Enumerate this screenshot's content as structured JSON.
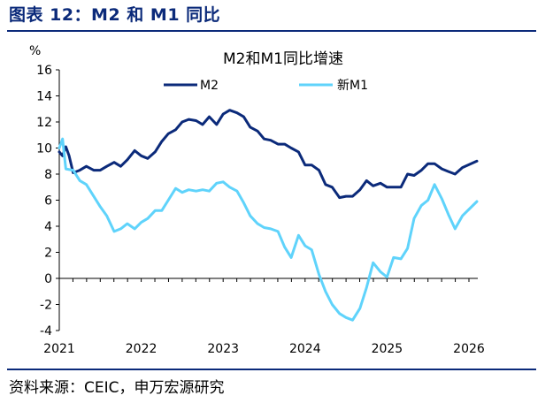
{
  "figure_title": "图表 12：M2 和 M1 同比",
  "source": "资料来源：CEIC，申万宏源研究",
  "colors": {
    "title": "#0b2a7a",
    "m2": "#0b2a7a",
    "m1": "#5fd3fb"
  },
  "chart_data": {
    "type": "line",
    "title": "M2和M1同比增速",
    "ylabel": "%",
    "ylim": [
      -4,
      16
    ],
    "yticks": [
      -4,
      -2,
      0,
      2,
      4,
      6,
      8,
      10,
      12,
      14,
      16
    ],
    "xlim": [
      2021.0,
      2026.0
    ],
    "xticks": [
      {
        "value": 2021,
        "label": "2021"
      },
      {
        "value": 2022,
        "label": "2022"
      },
      {
        "value": 2023,
        "label": "2023"
      },
      {
        "value": 2024,
        "label": "2024"
      },
      {
        "value": 2025,
        "label": "2025"
      },
      {
        "value": 2026,
        "label": "2026"
      }
    ],
    "series": [
      {
        "name": "M2",
        "x": [
          2021.0,
          2021.04,
          2021.08,
          2021.12,
          2021.17,
          2021.25,
          2021.33,
          2021.42,
          2021.5,
          2021.58,
          2021.67,
          2021.75,
          2021.83,
          2021.92,
          2022.0,
          2022.08,
          2022.17,
          2022.25,
          2022.33,
          2022.42,
          2022.5,
          2022.58,
          2022.67,
          2022.75,
          2022.83,
          2022.92,
          2023.0,
          2023.08,
          2023.17,
          2023.25,
          2023.33,
          2023.42,
          2023.5,
          2023.58,
          2023.67,
          2023.75,
          2023.83,
          2023.92,
          2024.0,
          2024.08,
          2024.17,
          2024.25,
          2024.33,
          2024.42,
          2024.5,
          2024.58,
          2024.67,
          2024.75,
          2024.83,
          2024.92,
          2025.0,
          2025.08,
          2025.17,
          2025.25,
          2025.33,
          2025.42,
          2025.5,
          2025.58,
          2025.67,
          2025.75,
          2025.83,
          2025.92,
          2026.0
        ],
        "values": [
          9.7,
          9.4,
          10.1,
          9.4,
          8.1,
          8.3,
          8.6,
          8.3,
          8.3,
          8.6,
          8.9,
          8.6,
          9.1,
          9.8,
          9.4,
          9.2,
          9.7,
          10.5,
          11.1,
          11.4,
          12.0,
          12.2,
          12.1,
          11.8,
          12.4,
          11.8,
          12.6,
          12.9,
          12.7,
          12.4,
          11.6,
          11.3,
          10.7,
          10.6,
          10.3,
          10.3,
          10.0,
          9.7,
          8.7,
          8.7,
          8.3,
          7.2,
          7.0,
          6.2,
          6.3,
          6.3,
          6.8,
          7.5,
          7.1,
          7.3,
          7.0,
          7.0,
          7.0,
          8.0,
          7.9,
          8.3,
          8.8,
          8.8,
          8.4,
          8.2,
          8.0,
          8.5,
          9.0
        ],
        "note": "series ends slightly after the 2026 tick at 9.0"
      },
      {
        "name": "新M1",
        "x": [
          2021.0,
          2021.04,
          2021.08,
          2021.17,
          2021.25,
          2021.33,
          2021.42,
          2021.5,
          2021.58,
          2021.67,
          2021.75,
          2021.83,
          2021.92,
          2022.0,
          2022.08,
          2022.17,
          2022.25,
          2022.33,
          2022.42,
          2022.5,
          2022.58,
          2022.67,
          2022.75,
          2022.83,
          2022.92,
          2023.0,
          2023.08,
          2023.17,
          2023.25,
          2023.33,
          2023.42,
          2023.5,
          2023.58,
          2023.67,
          2023.75,
          2023.83,
          2023.92,
          2024.0,
          2024.08,
          2024.17,
          2024.25,
          2024.33,
          2024.42,
          2024.5,
          2024.58,
          2024.67,
          2024.75,
          2024.83,
          2024.92,
          2025.0,
          2025.08,
          2025.17,
          2025.25,
          2025.33,
          2025.42,
          2025.5,
          2025.58,
          2025.67,
          2025.75,
          2025.83,
          2025.92,
          2026.0
        ],
        "values": [
          10.0,
          10.7,
          8.4,
          8.3,
          7.5,
          7.2,
          6.3,
          5.5,
          4.8,
          3.6,
          3.8,
          4.2,
          3.8,
          4.3,
          4.6,
          5.2,
          5.2,
          6.0,
          6.9,
          6.6,
          6.8,
          6.7,
          6.8,
          6.7,
          7.3,
          7.4,
          7.0,
          6.7,
          5.8,
          4.8,
          4.2,
          3.9,
          3.8,
          3.6,
          2.4,
          1.6,
          3.3,
          2.5,
          2.2,
          0.3,
          -1.0,
          -2.0,
          -2.7,
          -3.0,
          -3.2,
          -2.3,
          -0.7,
          1.2,
          0.5,
          0.1,
          1.6,
          1.5,
          2.3,
          4.6,
          5.6,
          6.0,
          7.2,
          6.1,
          4.9,
          3.8,
          4.8,
          5.9
        ],
        "note": "series ends slightly after the 2026 tick at 5.9"
      }
    ],
    "legend": {
      "position": "top-center",
      "entries": [
        "M2",
        "新M1"
      ]
    },
    "grid": false
  }
}
